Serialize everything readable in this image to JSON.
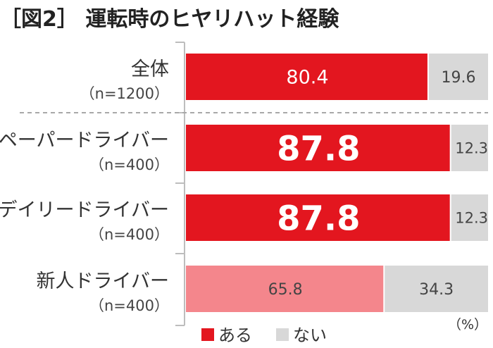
{
  "title": "［図2］ 運転時のヒヤリハット経験",
  "unit_note": "（%）",
  "colors": {
    "yes": "#e3161f",
    "yes_light": "#f4868c",
    "no": "#d8d8d8",
    "text": "#333333",
    "value_light": "#ffffff",
    "value_dark": "#444444"
  },
  "chart_data": {
    "type": "bar",
    "orientation": "horizontal",
    "stacked": true,
    "categories": [
      {
        "label": "全体",
        "sub": "（n=1200）"
      },
      {
        "label": "ペーパードライバー",
        "sub": "（n=400）"
      },
      {
        "label": "デイリードライバー",
        "sub": "（n=400）"
      },
      {
        "label": "新人ドライバー",
        "sub": "（n=400）"
      }
    ],
    "series": [
      {
        "name": "ある",
        "values": [
          80.4,
          87.8,
          87.8,
          65.8
        ],
        "labels": [
          "80.4",
          "87.8",
          "87.8",
          "65.8"
        ]
      },
      {
        "name": "ない",
        "values": [
          19.6,
          12.3,
          12.3,
          34.3
        ],
        "labels": [
          "19.6",
          "12.3",
          "12.3",
          "34.3"
        ]
      }
    ],
    "xlim": [
      0,
      100
    ],
    "emphasized_categories": [
      1,
      2
    ],
    "light_categories": [
      3
    ],
    "legend_position": "bottom-left",
    "separator_after_category": 0
  }
}
